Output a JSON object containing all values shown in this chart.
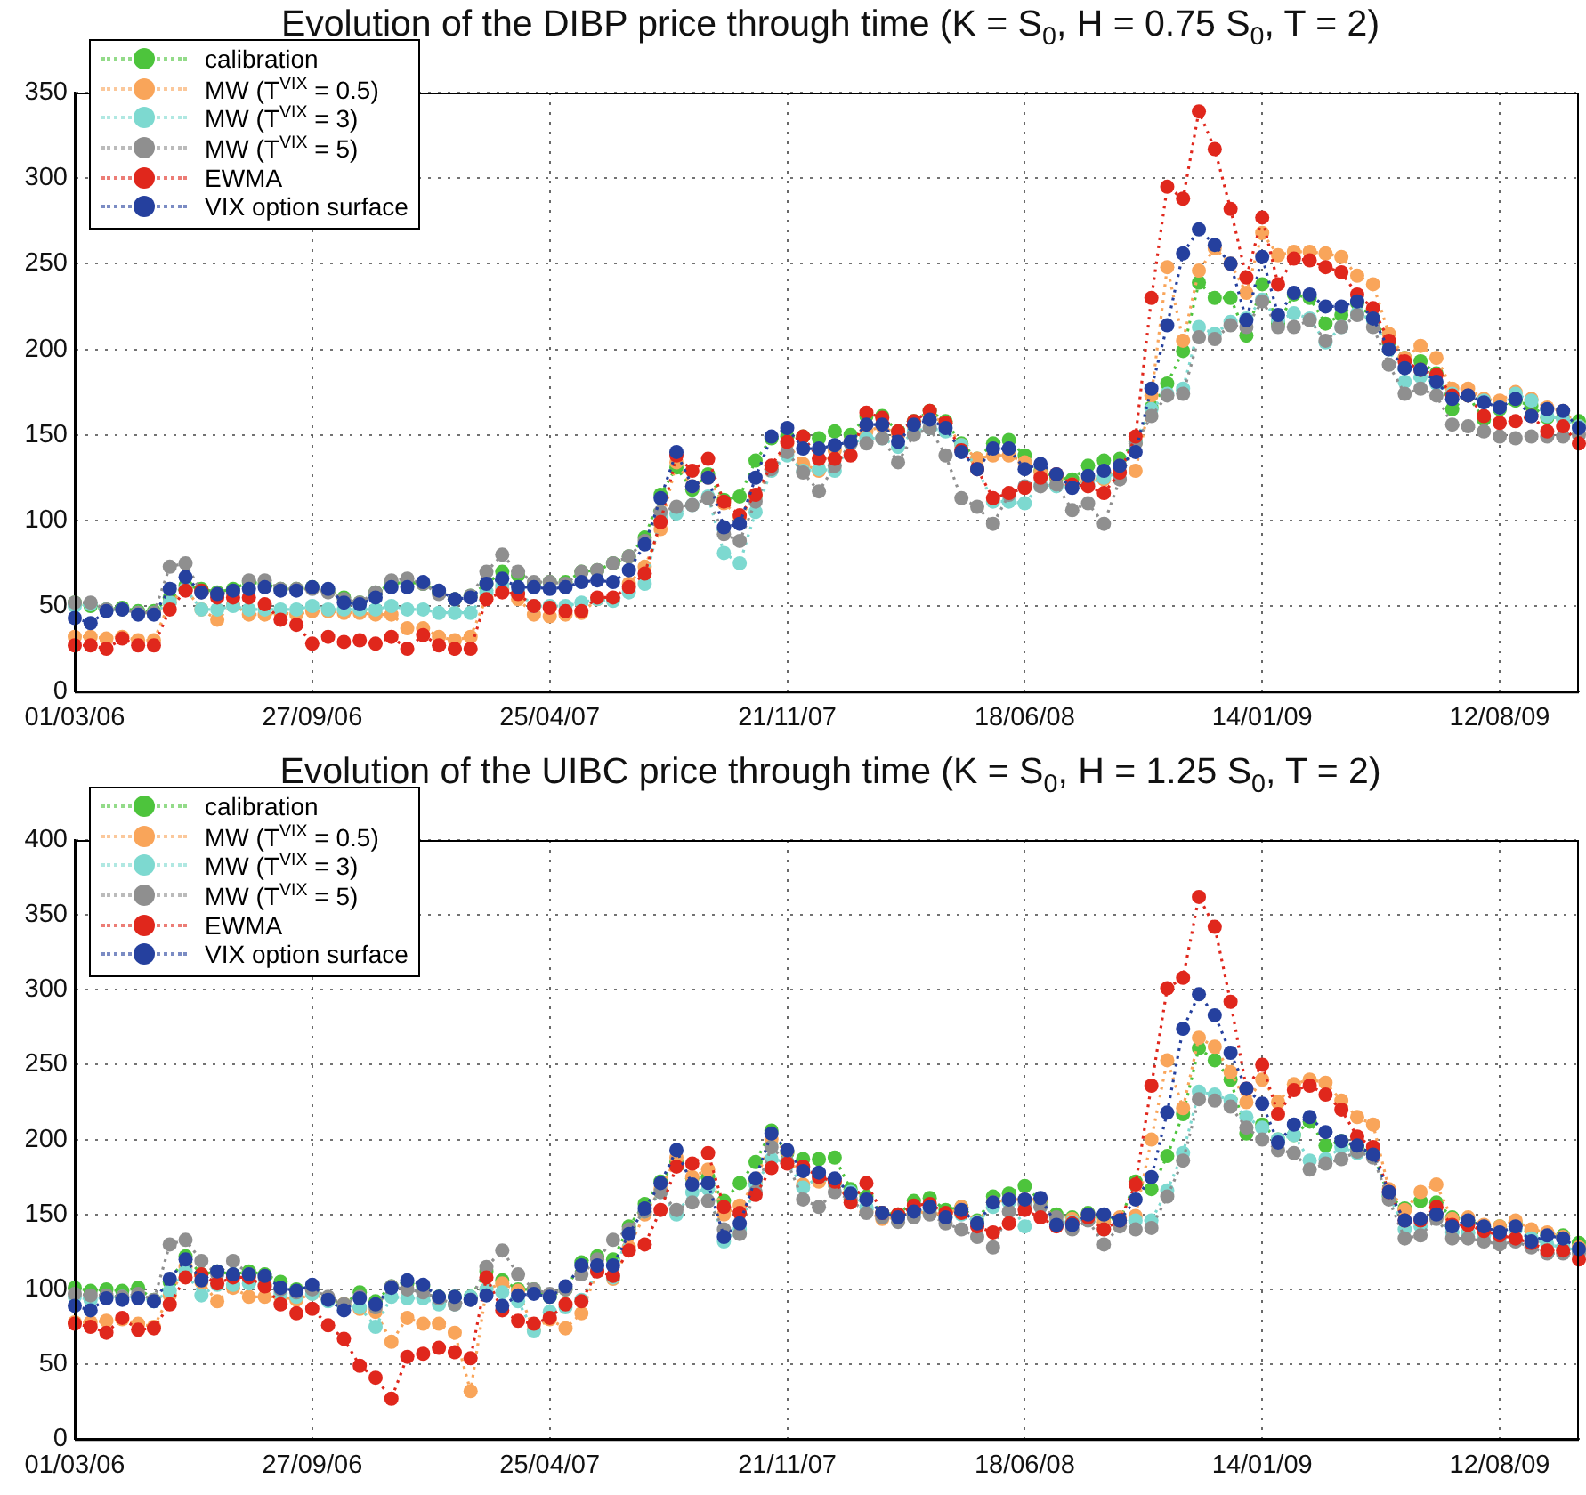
{
  "chart_data": [
    {
      "type": "line",
      "title": "Evolution of the DIBP price through time (K = S$_{0}$, H = 0.75 S$_{0}$, T = 2)",
      "legend": "top left",
      "grid": true,
      "marker": "circle",
      "line_style": "dotted",
      "x": [
        "2006-03-01",
        "2006-03-15",
        "2006-03-29",
        "2006-04-12",
        "2006-04-26",
        "2006-05-10",
        "2006-05-24",
        "2006-06-07",
        "2006-06-21",
        "2006-07-05",
        "2006-07-19",
        "2006-08-02",
        "2006-08-16",
        "2006-08-30",
        "2006-09-13",
        "2006-09-27",
        "2006-10-11",
        "2006-10-25",
        "2006-11-08",
        "2006-11-22",
        "2006-12-06",
        "2006-12-20",
        "2007-01-03",
        "2007-01-17",
        "2007-01-31",
        "2007-02-14",
        "2007-02-28",
        "2007-03-14",
        "2007-03-28",
        "2007-04-11",
        "2007-04-25",
        "2007-05-09",
        "2007-05-23",
        "2007-06-06",
        "2007-06-20",
        "2007-07-04",
        "2007-07-18",
        "2007-08-01",
        "2007-08-15",
        "2007-08-29",
        "2007-09-12",
        "2007-09-26",
        "2007-10-10",
        "2007-10-24",
        "2007-11-07",
        "2007-11-21",
        "2007-12-05",
        "2007-12-19",
        "2008-01-02",
        "2008-01-16",
        "2008-01-30",
        "2008-02-13",
        "2008-02-27",
        "2008-03-12",
        "2008-03-26",
        "2008-04-09",
        "2008-04-23",
        "2008-05-07",
        "2008-05-21",
        "2008-06-04",
        "2008-06-18",
        "2008-07-02",
        "2008-07-16",
        "2008-07-30",
        "2008-08-13",
        "2008-08-27",
        "2008-09-10",
        "2008-09-24",
        "2008-10-08",
        "2008-10-22",
        "2008-11-05",
        "2008-11-19",
        "2008-12-03",
        "2008-12-17",
        "2008-12-31",
        "2009-01-14",
        "2009-01-28",
        "2009-02-11",
        "2009-02-25",
        "2009-03-11",
        "2009-03-25",
        "2009-04-08",
        "2009-04-22",
        "2009-05-06",
        "2009-05-20",
        "2009-06-03",
        "2009-06-17",
        "2009-07-01",
        "2009-07-15",
        "2009-07-29",
        "2009-08-12",
        "2009-08-26",
        "2009-09-09",
        "2009-09-23",
        "2009-10-07",
        "2009-10-21"
      ],
      "xlim": [
        "2006-03-01",
        "2009-10-21"
      ],
      "xticks": [
        {
          "value": "2006-03-01",
          "label": "01/03/06"
        },
        {
          "value": "2006-09-27",
          "label": "27/09/06"
        },
        {
          "value": "2007-04-25",
          "label": "25/04/07"
        },
        {
          "value": "2007-11-21",
          "label": "21/11/07"
        },
        {
          "value": "2008-06-18",
          "label": "18/06/08"
        },
        {
          "value": "2009-01-14",
          "label": "14/01/09"
        },
        {
          "value": "2009-08-12",
          "label": "12/08/09"
        }
      ],
      "ylim": [
        0,
        350
      ],
      "yticks": [
        0,
        50,
        100,
        150,
        200,
        250,
        300,
        350
      ],
      "series": [
        {
          "name": "calibration",
          "color": "#4dc43c",
          "values": [
            52,
            50,
            48,
            49,
            47,
            47,
            55,
            62,
            60,
            58,
            60,
            64,
            63,
            60,
            60,
            61,
            59,
            55,
            52,
            58,
            63,
            64,
            63,
            58,
            54,
            56,
            63,
            70,
            68,
            63,
            64,
            64,
            70,
            71,
            75,
            79,
            90,
            115,
            131,
            118,
            127,
            112,
            114,
            135,
            148,
            149,
            149,
            148,
            152,
            150,
            161,
            161,
            152,
            158,
            164,
            158,
            145,
            136,
            145,
            147,
            138,
            129,
            125,
            124,
            132,
            135,
            136,
            146,
            166,
            180,
            199,
            239,
            230,
            230,
            208,
            238,
            215,
            232,
            230,
            215,
            220,
            227,
            218,
            204,
            195,
            193,
            186,
            165,
            173,
            159,
            165,
            170,
            167,
            160,
            160,
            158
          ]
        },
        {
          "name": "MW (T$^{VIX}$ = 0.5)",
          "color": "#f9a55a",
          "values": [
            32,
            32,
            31,
            32,
            30,
            30,
            52,
            60,
            48,
            42,
            51,
            45,
            45,
            46,
            45,
            47,
            47,
            46,
            46,
            45,
            45,
            37,
            37,
            32,
            30,
            32,
            55,
            60,
            54,
            45,
            44,
            45,
            46,
            54,
            54,
            63,
            73,
            95,
            134,
            120,
            125,
            110,
            102,
            114,
            130,
            145,
            133,
            129,
            141,
            146,
            152,
            155,
            150,
            155,
            161,
            157,
            144,
            136,
            138,
            138,
            134,
            128,
            126,
            121,
            124,
            124,
            132,
            129,
            173,
            248,
            205,
            246,
            259,
            250,
            233,
            268,
            255,
            257,
            257,
            256,
            254,
            243,
            238,
            209,
            195,
            202,
            195,
            177,
            177,
            171,
            170,
            175,
            171,
            166,
            164,
            155
          ]
        },
        {
          "name": "MW (T$^{VIX}$ = 3)",
          "color": "#7dd9d0",
          "values": [
            50,
            51,
            48,
            48,
            46,
            46,
            52,
            60,
            48,
            48,
            50,
            48,
            48,
            48,
            48,
            50,
            48,
            48,
            48,
            48,
            50,
            48,
            48,
            46,
            46,
            46,
            58,
            62,
            58,
            50,
            50,
            50,
            52,
            54,
            53,
            58,
            63,
            102,
            104,
            109,
            114,
            81,
            75,
            105,
            129,
            138,
            129,
            130,
            129,
            145,
            148,
            148,
            143,
            152,
            154,
            152,
            144,
            130,
            111,
            111,
            110,
            121,
            120,
            120,
            121,
            125,
            128,
            146,
            165,
            174,
            177,
            213,
            209,
            216,
            218,
            229,
            217,
            221,
            218,
            204,
            213,
            221,
            217,
            200,
            181,
            184,
            180,
            174,
            173,
            170,
            166,
            174,
            170,
            161,
            159,
            155
          ]
        },
        {
          "name": "MW (T$^{VIX}$ = 5)",
          "color": "#8f8f8f",
          "values": [
            52,
            52,
            48,
            48,
            46,
            46,
            73,
            75,
            58,
            57,
            58,
            65,
            65,
            60,
            60,
            60,
            58,
            54,
            52,
            58,
            65,
            66,
            63,
            57,
            54,
            56,
            70,
            80,
            70,
            64,
            64,
            63,
            70,
            71,
            75,
            79,
            88,
            105,
            108,
            109,
            113,
            92,
            88,
            111,
            130,
            140,
            128,
            117,
            132,
            145,
            145,
            148,
            134,
            150,
            154,
            138,
            113,
            108,
            98,
            115,
            120,
            120,
            121,
            106,
            110,
            98,
            124,
            145,
            161,
            173,
            174,
            207,
            206,
            214,
            213,
            228,
            213,
            213,
            217,
            205,
            213,
            220,
            213,
            191,
            174,
            177,
            173,
            156,
            155,
            152,
            149,
            148,
            149,
            149,
            149,
            150
          ]
        },
        {
          "name": "EWMA",
          "color": "#e0271c",
          "values": [
            27,
            27,
            25,
            31,
            27,
            27,
            48,
            59,
            59,
            55,
            55,
            55,
            51,
            42,
            39,
            28,
            32,
            29,
            30,
            28,
            32,
            25,
            33,
            27,
            25,
            25,
            54,
            58,
            57,
            50,
            49,
            47,
            47,
            55,
            55,
            61,
            69,
            99,
            138,
            129,
            136,
            111,
            103,
            115,
            132,
            146,
            149,
            136,
            136,
            138,
            163,
            160,
            152,
            158,
            164,
            157,
            141,
            130,
            113,
            116,
            119,
            125,
            127,
            121,
            120,
            116,
            128,
            149,
            230,
            295,
            288,
            339,
            317,
            282,
            242,
            277,
            238,
            253,
            252,
            248,
            245,
            232,
            224,
            205,
            193,
            188,
            185,
            173,
            173,
            161,
            157,
            158,
            161,
            152,
            155,
            145
          ]
        },
        {
          "name": "VIX option surface",
          "color": "#25409e",
          "values": [
            43,
            40,
            47,
            48,
            45,
            45,
            60,
            67,
            58,
            57,
            59,
            60,
            61,
            59,
            59,
            61,
            60,
            52,
            51,
            55,
            61,
            61,
            64,
            59,
            54,
            55,
            63,
            66,
            61,
            61,
            60,
            61,
            64,
            65,
            64,
            71,
            86,
            113,
            140,
            120,
            125,
            96,
            98,
            125,
            149,
            154,
            142,
            142,
            144,
            146,
            156,
            156,
            146,
            156,
            159,
            154,
            140,
            130,
            142,
            142,
            130,
            133,
            127,
            119,
            126,
            129,
            132,
            140,
            177,
            214,
            256,
            270,
            261,
            250,
            217,
            254,
            220,
            233,
            232,
            225,
            225,
            228,
            218,
            200,
            189,
            188,
            181,
            171,
            173,
            169,
            166,
            171,
            161,
            165,
            164,
            154
          ]
        }
      ]
    },
    {
      "type": "line",
      "title": "Evolution of the UIBC price through time (K = S$_{0}$, H = 1.25 S$_{0}$, T = 2)",
      "legend": "top left",
      "grid": true,
      "marker": "circle",
      "line_style": "dotted",
      "x": [
        "2006-03-01",
        "2006-03-15",
        "2006-03-29",
        "2006-04-12",
        "2006-04-26",
        "2006-05-10",
        "2006-05-24",
        "2006-06-07",
        "2006-06-21",
        "2006-07-05",
        "2006-07-19",
        "2006-08-02",
        "2006-08-16",
        "2006-08-30",
        "2006-09-13",
        "2006-09-27",
        "2006-10-11",
        "2006-10-25",
        "2006-11-08",
        "2006-11-22",
        "2006-12-06",
        "2006-12-20",
        "2007-01-03",
        "2007-01-17",
        "2007-01-31",
        "2007-02-14",
        "2007-02-28",
        "2007-03-14",
        "2007-03-28",
        "2007-04-11",
        "2007-04-25",
        "2007-05-09",
        "2007-05-23",
        "2007-06-06",
        "2007-06-20",
        "2007-07-04",
        "2007-07-18",
        "2007-08-01",
        "2007-08-15",
        "2007-08-29",
        "2007-09-12",
        "2007-09-26",
        "2007-10-10",
        "2007-10-24",
        "2007-11-07",
        "2007-11-21",
        "2007-12-05",
        "2007-12-19",
        "2008-01-02",
        "2008-01-16",
        "2008-01-30",
        "2008-02-13",
        "2008-02-27",
        "2008-03-12",
        "2008-03-26",
        "2008-04-09",
        "2008-04-23",
        "2008-05-07",
        "2008-05-21",
        "2008-06-04",
        "2008-06-18",
        "2008-07-02",
        "2008-07-16",
        "2008-07-30",
        "2008-08-13",
        "2008-08-27",
        "2008-09-10",
        "2008-09-24",
        "2008-10-08",
        "2008-10-22",
        "2008-11-05",
        "2008-11-19",
        "2008-12-03",
        "2008-12-17",
        "2008-12-31",
        "2009-01-14",
        "2009-01-28",
        "2009-02-11",
        "2009-02-25",
        "2009-03-11",
        "2009-03-25",
        "2009-04-08",
        "2009-04-22",
        "2009-05-06",
        "2009-05-20",
        "2009-06-03",
        "2009-06-17",
        "2009-07-01",
        "2009-07-15",
        "2009-07-29",
        "2009-08-12",
        "2009-08-26",
        "2009-09-09",
        "2009-09-23",
        "2009-10-07",
        "2009-10-21"
      ],
      "xlim": [
        "2006-03-01",
        "2009-10-21"
      ],
      "xticks": [
        {
          "value": "2006-03-01",
          "label": "01/03/06"
        },
        {
          "value": "2006-09-27",
          "label": "27/09/06"
        },
        {
          "value": "2007-04-25",
          "label": "25/04/07"
        },
        {
          "value": "2007-11-21",
          "label": "21/11/07"
        },
        {
          "value": "2008-06-18",
          "label": "18/06/08"
        },
        {
          "value": "2009-01-14",
          "label": "14/01/09"
        },
        {
          "value": "2009-08-12",
          "label": "12/08/09"
        }
      ],
      "ylim": [
        0,
        400
      ],
      "yticks": [
        0,
        50,
        100,
        150,
        200,
        250,
        300,
        350,
        400
      ],
      "series": [
        {
          "name": "calibration",
          "color": "#4dc43c",
          "values": [
            101,
            99,
            100,
            99,
            101,
            93,
            105,
            122,
            110,
            112,
            110,
            112,
            110,
            105,
            100,
            100,
            93,
            90,
            98,
            92,
            102,
            104,
            102,
            95,
            95,
            95,
            112,
            106,
            100,
            100,
            95,
            100,
            118,
            122,
            120,
            142,
            157,
            172,
            185,
            174,
            175,
            159,
            171,
            185,
            206,
            191,
            187,
            187,
            188,
            167,
            162,
            151,
            150,
            159,
            161,
            153,
            155,
            146,
            162,
            164,
            169,
            159,
            150,
            148,
            151,
            148,
            146,
            172,
            167,
            189,
            217,
            261,
            253,
            240,
            204,
            210,
            200,
            203,
            212,
            196,
            199,
            195,
            191,
            162,
            154,
            159,
            158,
            148,
            146,
            142,
            142,
            144,
            139,
            137,
            136,
            131
          ]
        },
        {
          "name": "MW (T$^{VIX}$ = 0.5)",
          "color": "#f9a55a",
          "values": [
            78,
            78,
            79,
            80,
            77,
            75,
            96,
            115,
            105,
            92,
            101,
            95,
            95,
            95,
            93,
            97,
            93,
            90,
            87,
            85,
            65,
            81,
            77,
            77,
            71,
            32,
            100,
            104,
            99,
            73,
            80,
            74,
            84,
            112,
            107,
            128,
            150,
            167,
            188,
            175,
            180,
            150,
            156,
            172,
            200,
            192,
            170,
            172,
            170,
            160,
            152,
            147,
            148,
            152,
            151,
            150,
            155,
            145,
            158,
            160,
            160,
            160,
            145,
            147,
            150,
            145,
            148,
            149,
            200,
            253,
            221,
            268,
            262,
            245,
            225,
            240,
            225,
            237,
            240,
            238,
            226,
            215,
            210,
            167,
            153,
            165,
            170,
            147,
            148,
            143,
            142,
            146,
            140,
            138,
            135,
            128
          ]
        },
        {
          "name": "MW (T$^{VIX}$ = 3)",
          "color": "#7dd9d0",
          "values": [
            95,
            93,
            95,
            95,
            95,
            92,
            99,
            112,
            96,
            103,
            103,
            104,
            103,
            97,
            95,
            97,
            92,
            88,
            88,
            75,
            95,
            94,
            94,
            90,
            90,
            95,
            100,
            98,
            92,
            72,
            85,
            88,
            93,
            112,
            108,
            139,
            152,
            165,
            150,
            165,
            167,
            132,
            140,
            170,
            187,
            185,
            168,
            175,
            170,
            165,
            155,
            150,
            148,
            150,
            153,
            148,
            150,
            145,
            155,
            158,
            142,
            155,
            145,
            145,
            148,
            140,
            145,
            146,
            146,
            166,
            191,
            232,
            230,
            226,
            215,
            208,
            200,
            203,
            186,
            187,
            195,
            191,
            190,
            163,
            140,
            142,
            148,
            138,
            138,
            136,
            134,
            140,
            134,
            130,
            128,
            126
          ]
        },
        {
          "name": "MW (T$^{VIX}$ = 5)",
          "color": "#8f8f8f",
          "values": [
            97,
            96,
            96,
            95,
            97,
            93,
            130,
            133,
            119,
            110,
            119,
            110,
            108,
            100,
            98,
            100,
            95,
            90,
            95,
            88,
            102,
            100,
            98,
            94,
            90,
            93,
            115,
            126,
            110,
            100,
            97,
            100,
            110,
            120,
            133,
            140,
            152,
            165,
            153,
            158,
            159,
            140,
            137,
            165,
            195,
            185,
            160,
            155,
            165,
            160,
            151,
            148,
            145,
            148,
            150,
            144,
            140,
            135,
            128,
            152,
            157,
            155,
            148,
            140,
            146,
            130,
            142,
            140,
            141,
            162,
            186,
            227,
            226,
            222,
            208,
            200,
            193,
            191,
            180,
            184,
            187,
            192,
            188,
            160,
            134,
            136,
            147,
            134,
            134,
            132,
            130,
            132,
            128,
            124,
            124,
            124
          ]
        },
        {
          "name": "EWMA",
          "color": "#e0271c",
          "values": [
            77,
            75,
            71,
            81,
            73,
            74,
            90,
            108,
            110,
            104,
            108,
            108,
            102,
            90,
            84,
            87,
            76,
            67,
            49,
            41,
            27,
            55,
            57,
            61,
            58,
            54,
            108,
            86,
            79,
            77,
            81,
            90,
            92,
            112,
            109,
            126,
            130,
            153,
            182,
            184,
            191,
            155,
            151,
            163,
            181,
            184,
            182,
            175,
            172,
            158,
            171,
            151,
            150,
            156,
            157,
            151,
            151,
            142,
            138,
            144,
            153,
            148,
            142,
            144,
            148,
            140,
            146,
            170,
            236,
            301,
            308,
            362,
            342,
            292,
            234,
            250,
            217,
            233,
            236,
            230,
            220,
            202,
            195,
            165,
            146,
            146,
            155,
            143,
            143,
            139,
            136,
            134,
            131,
            126,
            126,
            120
          ]
        },
        {
          "name": "VIX option surface",
          "color": "#25409e",
          "values": [
            89,
            86,
            94,
            93,
            94,
            92,
            107,
            120,
            106,
            112,
            110,
            110,
            109,
            101,
            99,
            103,
            93,
            86,
            94,
            90,
            101,
            106,
            103,
            95,
            95,
            93,
            96,
            89,
            96,
            97,
            95,
            102,
            116,
            116,
            116,
            137,
            154,
            171,
            193,
            170,
            171,
            135,
            144,
            174,
            204,
            193,
            179,
            178,
            174,
            164,
            160,
            151,
            148,
            152,
            155,
            148,
            153,
            144,
            158,
            160,
            160,
            161,
            143,
            143,
            150,
            150,
            146,
            160,
            175,
            218,
            274,
            297,
            283,
            258,
            234,
            224,
            198,
            210,
            215,
            205,
            199,
            196,
            190,
            165,
            146,
            147,
            150,
            142,
            146,
            142,
            138,
            142,
            132,
            136,
            134,
            127
          ]
        }
      ]
    }
  ]
}
